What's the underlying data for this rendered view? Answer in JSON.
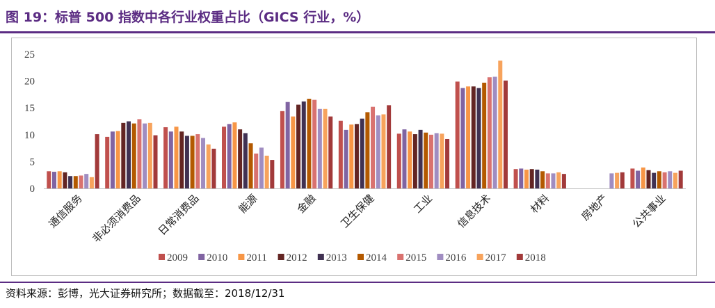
{
  "title": "图 19：标普 500 指数中各行业权重占比（GICS 行业，%）",
  "source": "资料来源：彭博，光大证券研究所；数据截至：2018/12/31",
  "colors": [
    "#c0504d",
    "#8064a2",
    "#f79646",
    "#632523",
    "#403152",
    "#b35900",
    "#d9726f",
    "#a08dc1",
    "#f7a35c",
    "#a23a3a"
  ],
  "chart_data": {
    "type": "bar",
    "title": "",
    "xlabel": "",
    "ylabel": "",
    "ylim": [
      0,
      25
    ],
    "yticks": [
      0,
      5,
      10,
      15,
      20,
      25
    ],
    "grid": false,
    "legend_position": "bottom",
    "categories": [
      "通信服务",
      "非必须消费品",
      "日常消费品",
      "能源",
      "金融",
      "卫生保健",
      "工业",
      "信息技术",
      "材料",
      "房地产",
      "公共事业"
    ],
    "series": [
      {
        "name": "2009",
        "values": [
          3.2,
          9.6,
          11.4,
          11.5,
          14.4,
          12.6,
          10.2,
          19.9,
          3.6,
          null,
          3.7
        ]
      },
      {
        "name": "2010",
        "values": [
          3.1,
          10.6,
          10.6,
          12.0,
          16.1,
          10.9,
          11.0,
          18.7,
          3.7,
          null,
          3.3
        ]
      },
      {
        "name": "2011",
        "values": [
          3.2,
          10.7,
          11.5,
          12.3,
          13.4,
          11.9,
          10.6,
          19.0,
          3.5,
          null,
          3.9
        ]
      },
      {
        "name": "2012",
        "values": [
          3.0,
          12.2,
          10.6,
          11.0,
          15.6,
          12.0,
          10.1,
          19.0,
          3.6,
          null,
          3.4
        ]
      },
      {
        "name": "2013",
        "values": [
          2.3,
          12.5,
          9.8,
          10.3,
          16.2,
          13.0,
          10.9,
          18.7,
          3.5,
          null,
          2.9
        ]
      },
      {
        "name": "2014",
        "values": [
          2.3,
          12.1,
          9.8,
          8.4,
          16.7,
          14.2,
          10.4,
          19.7,
          3.2,
          null,
          3.2
        ]
      },
      {
        "name": "2015",
        "values": [
          2.4,
          12.9,
          10.1,
          6.5,
          16.5,
          15.2,
          10.0,
          20.7,
          2.8,
          null,
          3.0
        ]
      },
      {
        "name": "2016",
        "values": [
          2.7,
          12.1,
          9.4,
          7.6,
          14.8,
          13.6,
          10.3,
          20.8,
          2.8,
          2.8,
          3.2
        ]
      },
      {
        "name": "2017",
        "values": [
          2.1,
          12.2,
          8.2,
          6.1,
          14.8,
          13.8,
          10.2,
          23.8,
          3.0,
          2.9,
          2.9
        ]
      },
      {
        "name": "2018",
        "values": [
          10.1,
          9.9,
          7.4,
          5.3,
          13.4,
          15.5,
          9.2,
          20.1,
          2.7,
          3.0,
          3.3
        ]
      }
    ]
  }
}
